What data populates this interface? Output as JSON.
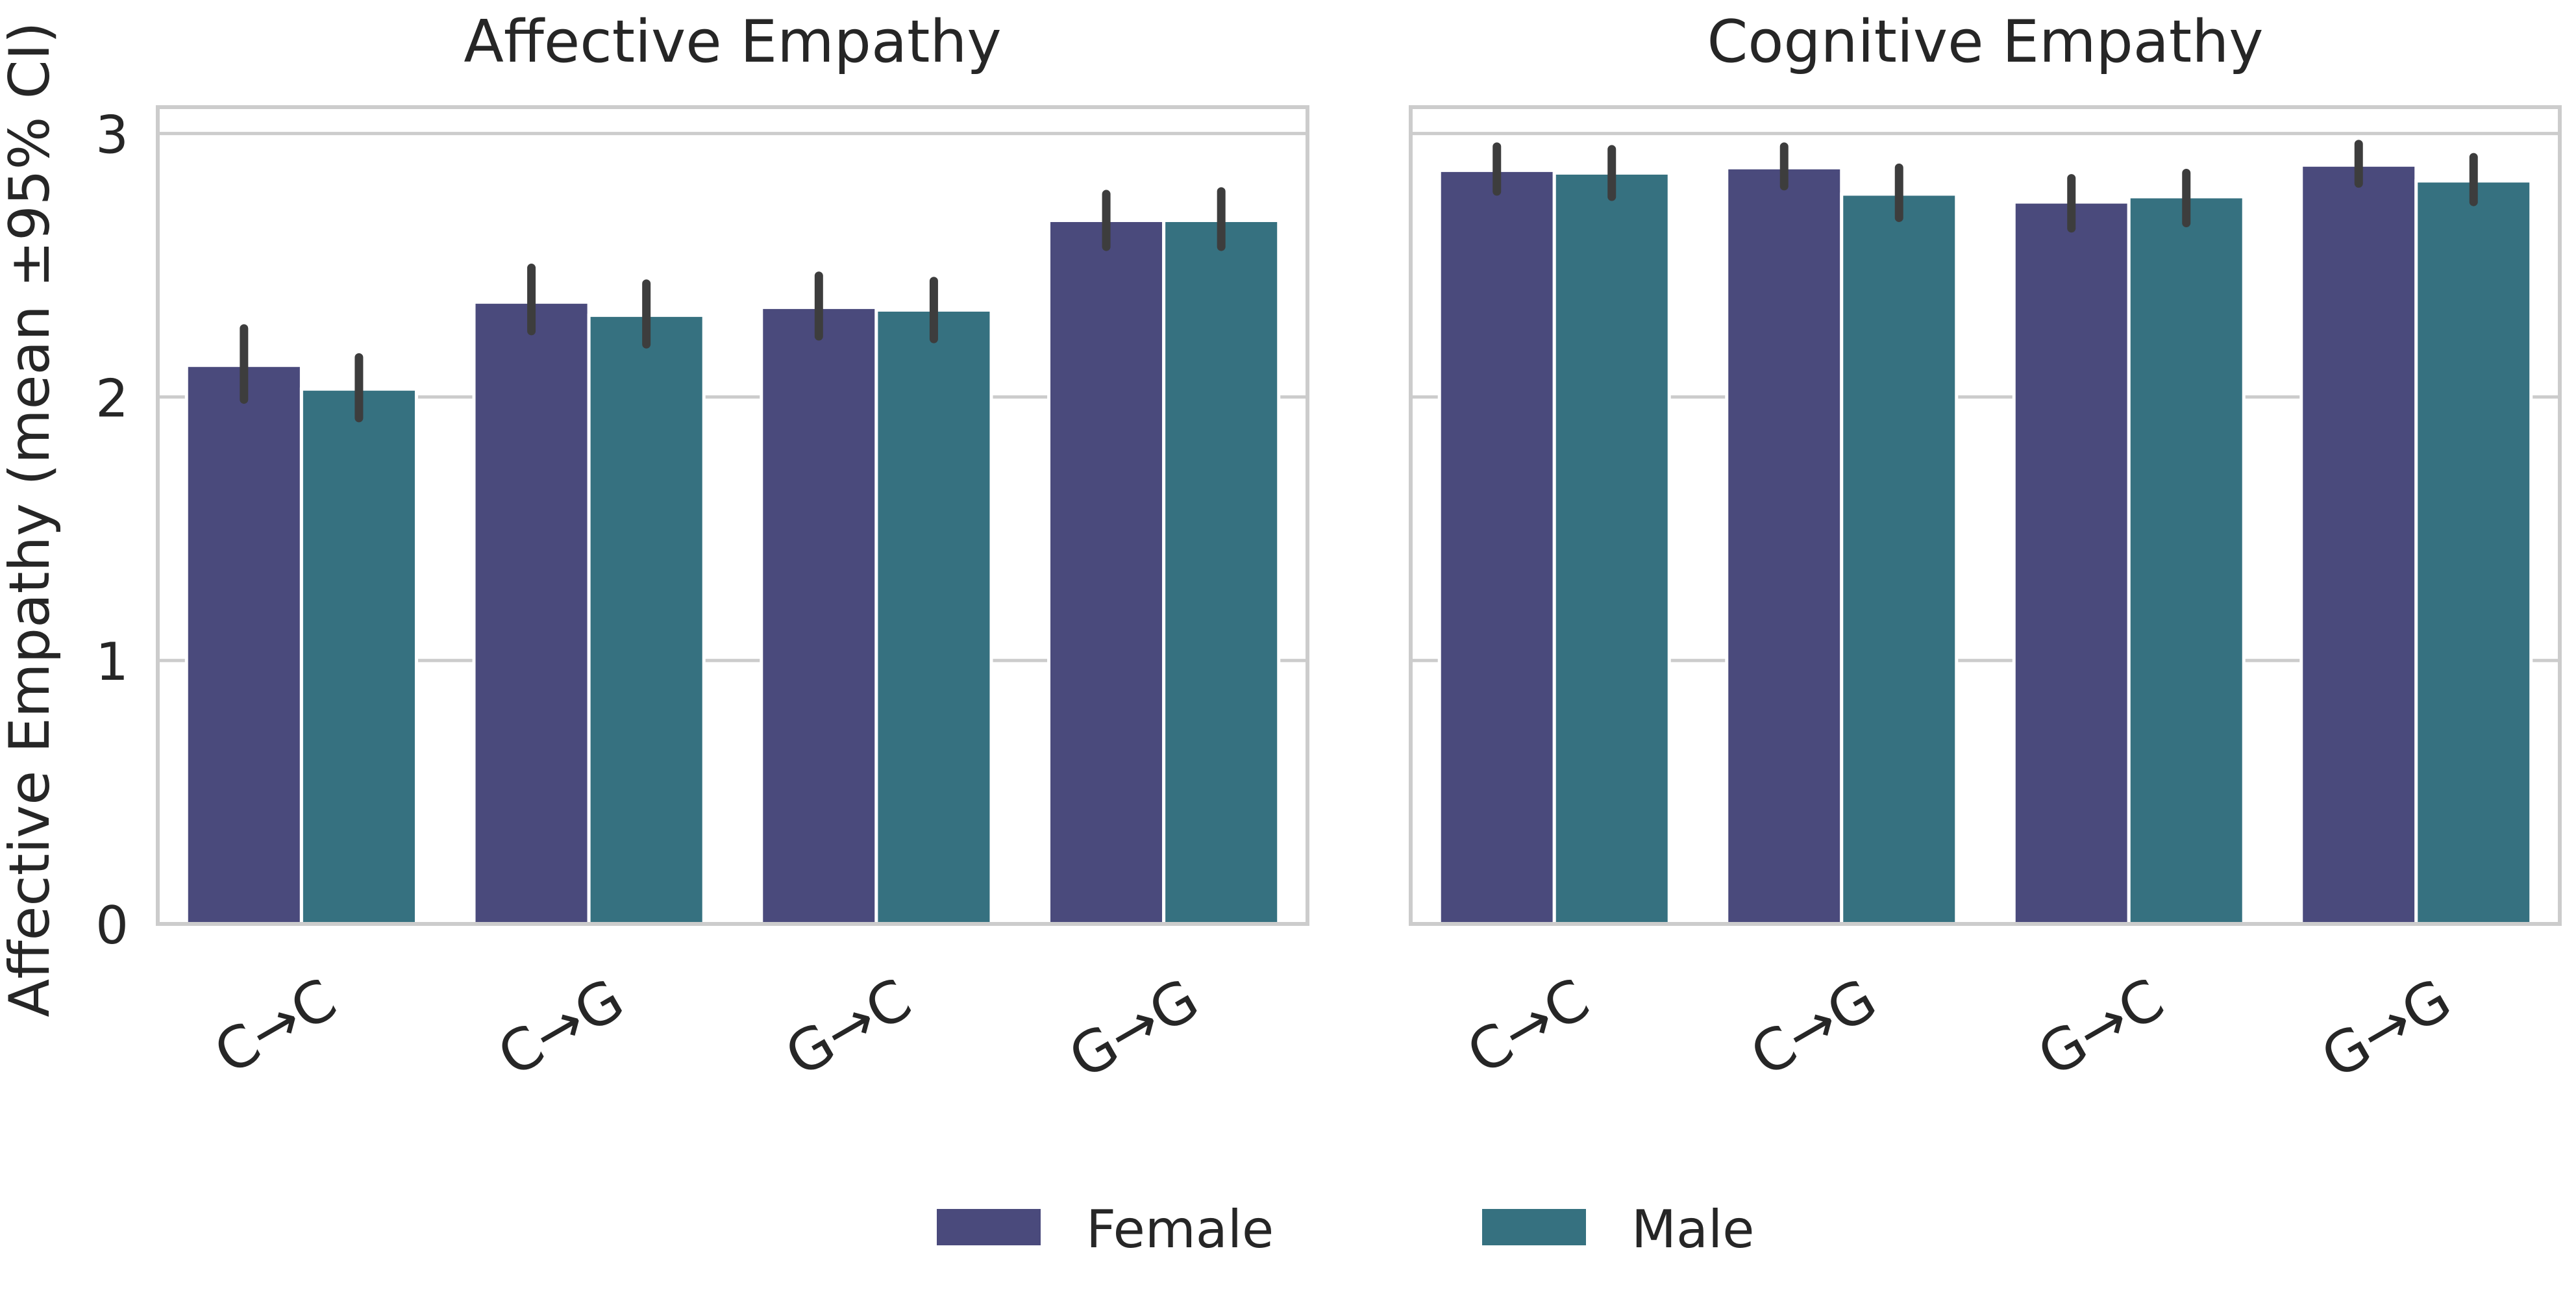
{
  "figure": {
    "ylabel": "Affective Empathy (mean ±95% CI)"
  },
  "legend": {
    "position": "bottom-center",
    "items": [
      {
        "label": "Female",
        "color": "#4a4a7c"
      },
      {
        "label": "Male",
        "color": "#367180"
      }
    ]
  },
  "chart_data": [
    {
      "type": "bar",
      "title": "Affective Empathy",
      "xlabel": "",
      "ylabel": "Affective Empathy (mean ±95% CI)",
      "categories": [
        "C→C",
        "C→G",
        "G→C",
        "G→G"
      ],
      "ylim": [
        0,
        3.1
      ],
      "yticks": [
        0,
        1,
        2,
        3
      ],
      "grid": true,
      "series": [
        {
          "name": "Female",
          "color": "#4a4a7c",
          "values": [
            2.12,
            2.36,
            2.34,
            2.67
          ],
          "ci_low": [
            1.99,
            2.25,
            2.23,
            2.57
          ],
          "ci_high": [
            2.26,
            2.49,
            2.46,
            2.77
          ]
        },
        {
          "name": "Male",
          "color": "#367180",
          "values": [
            2.03,
            2.31,
            2.33,
            2.67
          ],
          "ci_low": [
            1.92,
            2.2,
            2.22,
            2.57
          ],
          "ci_high": [
            2.15,
            2.43,
            2.44,
            2.78
          ]
        }
      ]
    },
    {
      "type": "bar",
      "title": "Cognitive Empathy",
      "xlabel": "",
      "ylabel": "",
      "categories": [
        "C→C",
        "C→G",
        "G→C",
        "G→G"
      ],
      "ylim": [
        0,
        3.1
      ],
      "yticks": [
        0,
        1,
        2,
        3
      ],
      "grid": true,
      "series": [
        {
          "name": "Female",
          "color": "#4a4a7c",
          "values": [
            2.86,
            2.87,
            2.74,
            2.88
          ],
          "ci_low": [
            2.78,
            2.8,
            2.64,
            2.81
          ],
          "ci_high": [
            2.95,
            2.95,
            2.83,
            2.96
          ]
        },
        {
          "name": "Male",
          "color": "#367180",
          "values": [
            2.85,
            2.77,
            2.76,
            2.82
          ],
          "ci_low": [
            2.76,
            2.68,
            2.66,
            2.74
          ],
          "ci_high": [
            2.94,
            2.87,
            2.85,
            2.91
          ]
        }
      ]
    }
  ]
}
